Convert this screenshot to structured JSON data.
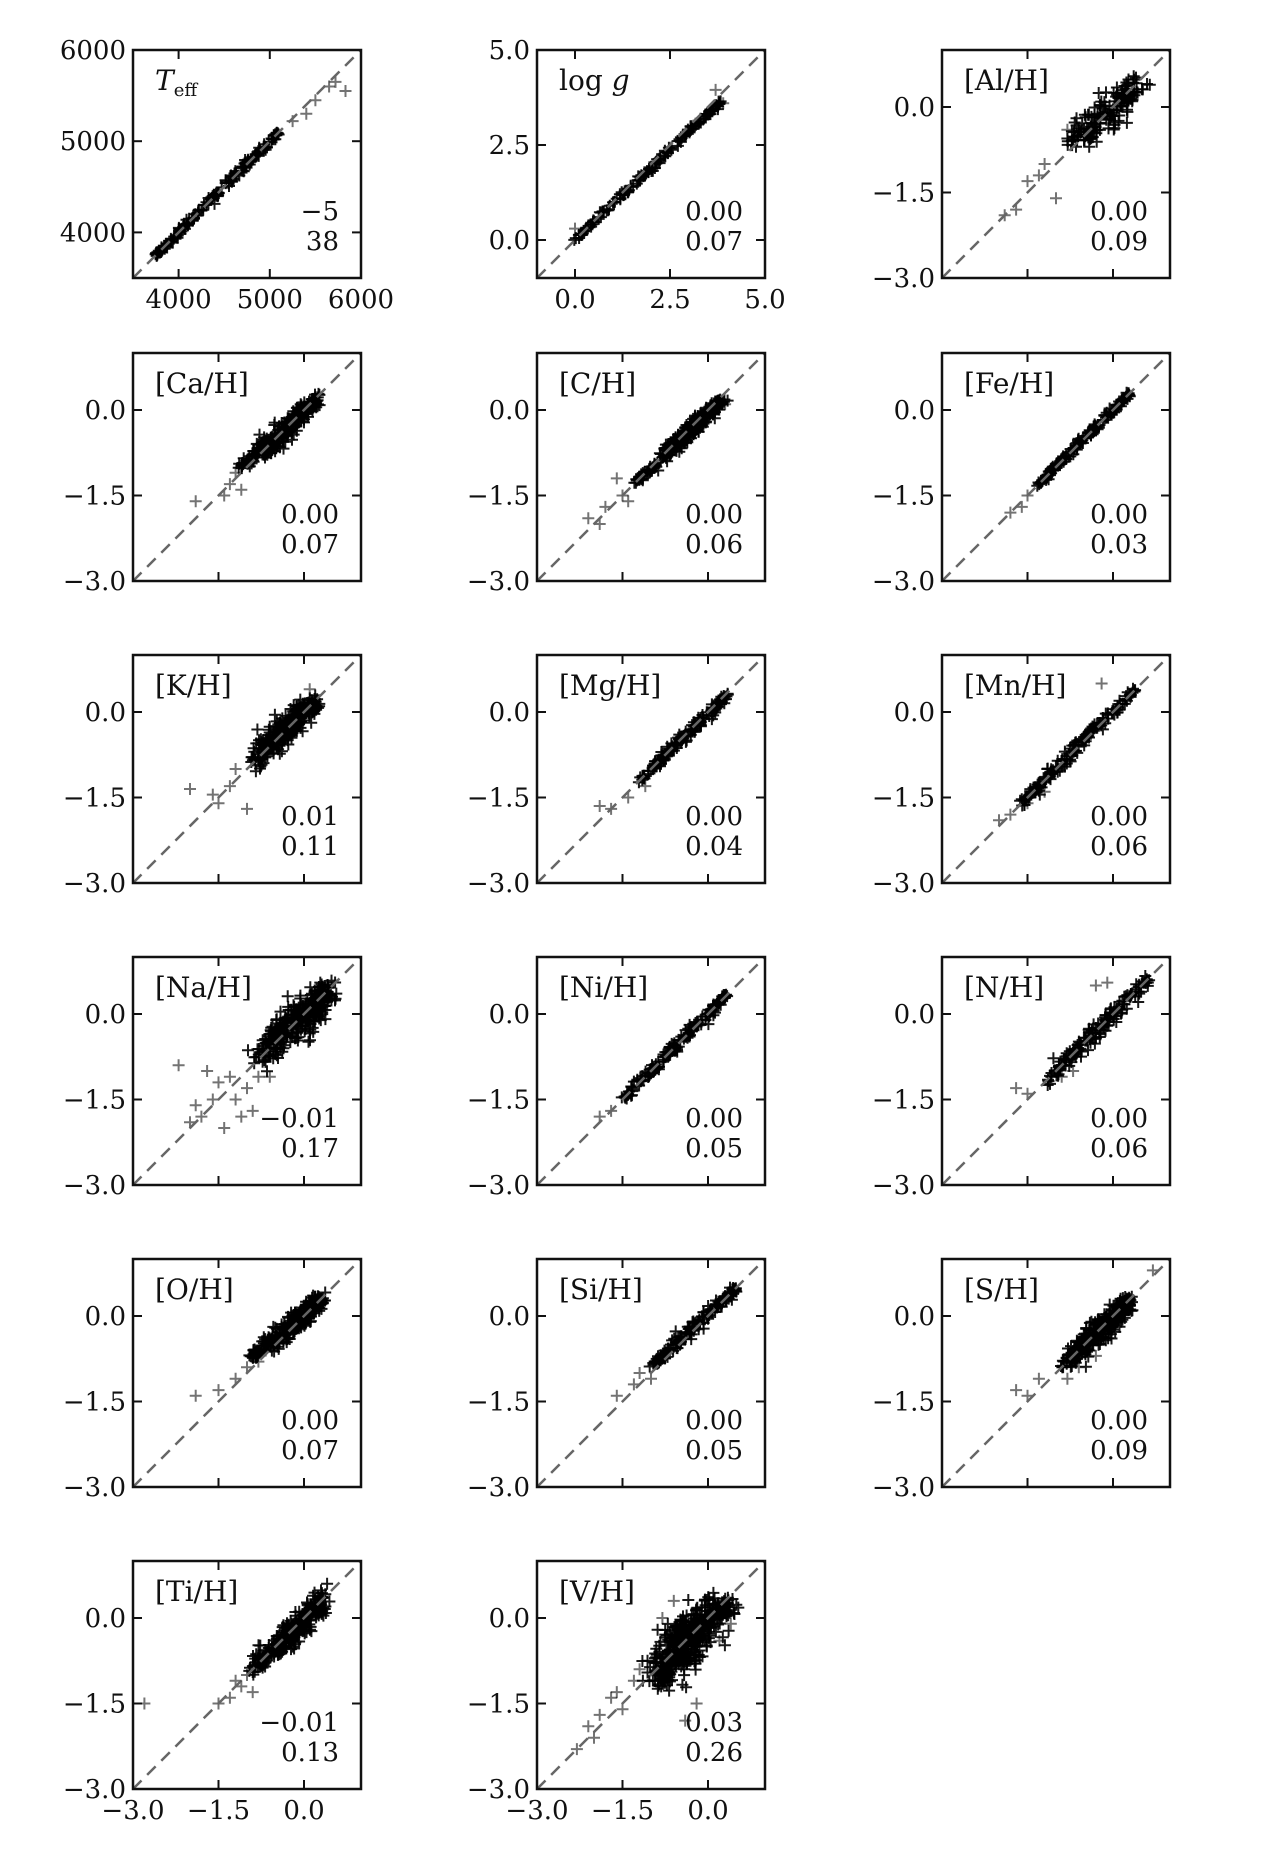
{
  "colors": {
    "points": "#000000",
    "diagonal": "#666666",
    "frame": "#111111"
  },
  "chart_data": [
    {
      "type": "scatter",
      "title": "T",
      "title_sub": "eff",
      "xlim": [
        3500,
        6000
      ],
      "ylim": [
        3500,
        6000
      ],
      "xticks": [
        "4000",
        "5000",
        "6000"
      ],
      "yticks": [
        "4000",
        "5000",
        "6000"
      ],
      "show_x_ticklabels": true,
      "stats": [
        "−5",
        "38"
      ],
      "points": {
        "segments": [
          [
            3750,
            3750,
            5100,
            5100
          ]
        ],
        "spread": 35,
        "sparse": [
          [
            5250,
            5220
          ],
          [
            5500,
            5450
          ],
          [
            5650,
            5600
          ],
          [
            5720,
            5650
          ],
          [
            5830,
            5550
          ],
          [
            5400,
            5300
          ]
        ]
      }
    },
    {
      "type": "scatter",
      "title": "log g",
      "xlim": [
        -1.0,
        5.0
      ],
      "ylim": [
        -1.0,
        5.0
      ],
      "xticks": [
        "0.0",
        "2.5",
        "5.0"
      ],
      "yticks": [
        "0.0",
        "2.5",
        "5.0"
      ],
      "show_x_ticklabels": true,
      "stats": [
        "0.00",
        "0.07"
      ],
      "points": {
        "segments": [
          [
            0.0,
            0.0,
            3.9,
            3.7
          ]
        ],
        "spread": 0.07,
        "sparse": [
          [
            0.0,
            0.3
          ],
          [
            3.7,
            3.95
          ],
          [
            3.9,
            3.6
          ]
        ]
      }
    },
    {
      "type": "scatter",
      "title": "[Al/H]",
      "xlim": [
        -3.0,
        1.0
      ],
      "ylim": [
        -3.0,
        1.0
      ],
      "xticks": [
        "−3.0",
        "−1.5",
        "0.0"
      ],
      "yticks": [
        "−3.0",
        "−1.5",
        "0.0"
      ],
      "show_x_ticklabels": false,
      "stats": [
        "0.00",
        "0.09"
      ],
      "points": {
        "segments": [
          [
            -0.7,
            -0.6,
            0.45,
            0.35
          ]
        ],
        "spread": 0.3,
        "sparse": [
          [
            -1.9,
            -1.9
          ],
          [
            -1.7,
            -1.8
          ],
          [
            -1.5,
            -1.3
          ],
          [
            -1.2,
            -1.0
          ],
          [
            -1.0,
            -1.6
          ],
          [
            -0.8,
            -0.4
          ],
          [
            -1.3,
            -1.2
          ]
        ]
      }
    },
    {
      "type": "scatter",
      "title": "[Ca/H]",
      "xlim": [
        -3.0,
        1.0
      ],
      "ylim": [
        -3.0,
        1.0
      ],
      "xticks": [
        "−3.0",
        "−1.5",
        "0.0"
      ],
      "yticks": [
        "−3.0",
        "−1.5",
        "0.0"
      ],
      "show_x_ticklabels": false,
      "stats": [
        "0.00",
        "0.07"
      ],
      "points": {
        "segments": [
          [
            -1.1,
            -1.0,
            0.25,
            0.25
          ],
          [
            -0.7,
            -0.8,
            0.2,
            0.15
          ]
        ],
        "spread": 0.13,
        "sparse": [
          [
            -1.9,
            -1.6
          ],
          [
            -1.4,
            -1.5
          ],
          [
            -1.3,
            -1.3
          ],
          [
            -1.1,
            -1.4
          ],
          [
            -1.2,
            -1.1
          ]
        ]
      }
    },
    {
      "type": "scatter",
      "title": "[C/H]",
      "xlim": [
        -3.0,
        1.0
      ],
      "ylim": [
        -3.0,
        1.0
      ],
      "xticks": [
        "−3.0",
        "−1.5",
        "0.0"
      ],
      "yticks": [
        "−3.0",
        "−1.5",
        "0.0"
      ],
      "show_x_ticklabels": false,
      "stats": [
        "0.00",
        "0.06"
      ],
      "points": {
        "segments": [
          [
            -1.3,
            -1.3,
            0.3,
            0.2
          ],
          [
            -0.8,
            -0.8,
            0.2,
            0.15
          ]
        ],
        "spread": 0.1,
        "sparse": [
          [
            -2.1,
            -1.9
          ],
          [
            -1.9,
            -2.0
          ],
          [
            -1.8,
            -1.7
          ],
          [
            -1.5,
            -1.5
          ],
          [
            -1.4,
            -1.6
          ],
          [
            -1.6,
            -1.2
          ],
          [
            0.3,
            0.1
          ]
        ]
      }
    },
    {
      "type": "scatter",
      "title": "[Fe/H]",
      "xlim": [
        -3.0,
        1.0
      ],
      "ylim": [
        -3.0,
        1.0
      ],
      "xticks": [
        "−3.0",
        "−1.5",
        "0.0"
      ],
      "yticks": [
        "−3.0",
        "−1.5",
        "0.0"
      ],
      "show_x_ticklabels": false,
      "stats": [
        "0.00",
        "0.03"
      ],
      "points": {
        "segments": [
          [
            -1.3,
            -1.3,
            0.3,
            0.3
          ]
        ],
        "spread": 0.06,
        "sparse": [
          [
            -1.8,
            -1.8
          ],
          [
            -1.6,
            -1.7
          ],
          [
            -1.5,
            -1.5
          ]
        ]
      }
    },
    {
      "type": "scatter",
      "title": "[K/H]",
      "xlim": [
        -3.0,
        1.0
      ],
      "ylim": [
        -3.0,
        1.0
      ],
      "xticks": [
        "−3.0",
        "−1.5",
        "0.0"
      ],
      "yticks": [
        "−3.0",
        "−1.5",
        "0.0"
      ],
      "show_x_ticklabels": false,
      "stats": [
        "0.01",
        "0.11"
      ],
      "points": {
        "segments": [
          [
            -0.9,
            -0.9,
            0.15,
            0.15
          ],
          [
            -0.6,
            -0.6,
            0.2,
            0.2
          ]
        ],
        "spread": 0.22,
        "sparse": [
          [
            -2.0,
            -1.35
          ],
          [
            -1.6,
            -1.45
          ],
          [
            -1.5,
            -1.6
          ],
          [
            -1.3,
            -1.3
          ],
          [
            -1.0,
            -1.7
          ],
          [
            -1.2,
            -1.0
          ],
          [
            0.1,
            0.4
          ]
        ]
      }
    },
    {
      "type": "scatter",
      "title": "[Mg/H]",
      "xlim": [
        -3.0,
        1.0
      ],
      "ylim": [
        -3.0,
        1.0
      ],
      "xticks": [
        "−3.0",
        "−1.5",
        "0.0"
      ],
      "yticks": [
        "−3.0",
        "−1.5",
        "0.0"
      ],
      "show_x_ticklabels": false,
      "stats": [
        "0.00",
        "0.04"
      ],
      "points": {
        "segments": [
          [
            -1.2,
            -1.2,
            0.35,
            0.3
          ]
        ],
        "spread": 0.08,
        "sparse": [
          [
            -1.9,
            -1.65
          ],
          [
            -1.7,
            -1.7
          ],
          [
            -1.4,
            -1.5
          ],
          [
            -1.1,
            -1.3
          ]
        ]
      }
    },
    {
      "type": "scatter",
      "title": "[Mn/H]",
      "xlim": [
        -3.0,
        1.0
      ],
      "ylim": [
        -3.0,
        1.0
      ],
      "xticks": [
        "−3.0",
        "−1.5",
        "0.0"
      ],
      "yticks": [
        "−3.0",
        "−1.5",
        "0.0"
      ],
      "show_x_ticklabels": false,
      "stats": [
        "0.00",
        "0.06"
      ],
      "points": {
        "segments": [
          [
            -1.6,
            -1.6,
            0.4,
            0.4
          ]
        ],
        "spread": 0.1,
        "sparse": [
          [
            -2.0,
            -1.9
          ],
          [
            -1.8,
            -1.8
          ],
          [
            -1.5,
            -1.6
          ],
          [
            -0.2,
            0.5
          ],
          [
            -1.2,
            -1.4
          ]
        ]
      }
    },
    {
      "type": "scatter",
      "title": "[Na/H]",
      "xlim": [
        -3.0,
        1.0
      ],
      "ylim": [
        -3.0,
        1.0
      ],
      "xticks": [
        "−3.0",
        "−1.5",
        "0.0"
      ],
      "yticks": [
        "−3.0",
        "−1.5",
        "0.0"
      ],
      "show_x_ticklabels": false,
      "stats": [
        "−0.01",
        "0.17"
      ],
      "points": {
        "segments": [
          [
            -0.8,
            -0.8,
            0.45,
            0.45
          ],
          [
            -0.5,
            -0.4,
            0.4,
            0.3
          ]
        ],
        "spread": 0.3,
        "sparse": [
          [
            -2.0,
            -1.9
          ],
          [
            -1.8,
            -1.8
          ],
          [
            -1.9,
            -1.6
          ],
          [
            -1.6,
            -1.5
          ],
          [
            -1.4,
            -2.0
          ],
          [
            -1.2,
            -1.5
          ],
          [
            -1.1,
            -1.8
          ],
          [
            -1.0,
            -1.3
          ],
          [
            -0.9,
            -1.7
          ],
          [
            -1.5,
            -1.2
          ],
          [
            -1.7,
            -1.0
          ],
          [
            -0.8,
            -1.1
          ],
          [
            -0.6,
            -1.1
          ],
          [
            -2.2,
            -0.9
          ],
          [
            -1.3,
            -1.1
          ]
        ]
      }
    },
    {
      "type": "scatter",
      "title": "[Ni/H]",
      "xlim": [
        -3.0,
        1.0
      ],
      "ylim": [
        -3.0,
        1.0
      ],
      "xticks": [
        "−3.0",
        "−1.5",
        "0.0"
      ],
      "yticks": [
        "−3.0",
        "−1.5",
        "0.0"
      ],
      "show_x_ticklabels": false,
      "stats": [
        "0.00",
        "0.05"
      ],
      "points": {
        "segments": [
          [
            -1.5,
            -1.5,
            0.35,
            0.35
          ]
        ],
        "spread": 0.08,
        "sparse": [
          [
            -1.9,
            -1.8
          ],
          [
            -1.7,
            -1.7
          ],
          [
            -1.4,
            -1.4
          ]
        ]
      }
    },
    {
      "type": "scatter",
      "title": "[N/H]",
      "xlim": [
        -3.0,
        1.0
      ],
      "ylim": [
        -3.0,
        1.0
      ],
      "xticks": [
        "−3.0",
        "−1.5",
        "0.0"
      ],
      "yticks": [
        "−3.0",
        "−1.5",
        "0.0"
      ],
      "show_x_ticklabels": false,
      "stats": [
        "0.00",
        "0.06"
      ],
      "points": {
        "segments": [
          [
            -1.2,
            -1.2,
            0.6,
            0.6
          ]
        ],
        "spread": 0.12,
        "sparse": [
          [
            -1.7,
            -1.3
          ],
          [
            -1.5,
            -1.4
          ],
          [
            -0.3,
            0.5
          ],
          [
            -0.1,
            0.55
          ],
          [
            -0.9,
            -1.1
          ],
          [
            -0.7,
            -1.0
          ]
        ]
      }
    },
    {
      "type": "scatter",
      "title": "[O/H]",
      "xlim": [
        -3.0,
        1.0
      ],
      "ylim": [
        -3.0,
        1.0
      ],
      "xticks": [
        "−3.0",
        "−1.5",
        "0.0"
      ],
      "yticks": [
        "−3.0",
        "−1.5",
        "0.0"
      ],
      "show_x_ticklabels": false,
      "stats": [
        "0.00",
        "0.07"
      ],
      "points": {
        "segments": [
          [
            -0.9,
            -0.7,
            0.35,
            0.35
          ],
          [
            -0.5,
            -0.5,
            0.3,
            0.3
          ]
        ],
        "spread": 0.14,
        "sparse": [
          [
            -1.9,
            -1.4
          ],
          [
            -1.5,
            -1.3
          ],
          [
            -1.2,
            -1.1
          ],
          [
            -1.0,
            -0.9
          ],
          [
            -0.8,
            -0.8
          ]
        ]
      }
    },
    {
      "type": "scatter",
      "title": "[Si/H]",
      "xlim": [
        -3.0,
        1.0
      ],
      "ylim": [
        -3.0,
        1.0
      ],
      "xticks": [
        "−3.0",
        "−1.5",
        "0.0"
      ],
      "yticks": [
        "−3.0",
        "−1.5",
        "0.0"
      ],
      "show_x_ticklabels": false,
      "stats": [
        "0.00",
        "0.05"
      ],
      "points": {
        "segments": [
          [
            -1.0,
            -0.9,
            0.5,
            0.5
          ]
        ],
        "spread": 0.09,
        "sparse": [
          [
            -1.6,
            -1.4
          ],
          [
            -1.3,
            -1.2
          ],
          [
            -1.2,
            -1.0
          ],
          [
            -1.0,
            -1.1
          ]
        ]
      }
    },
    {
      "type": "scatter",
      "title": "[S/H]",
      "xlim": [
        -3.0,
        1.0
      ],
      "ylim": [
        -3.0,
        1.0
      ],
      "xticks": [
        "−3.0",
        "−1.5",
        "0.0"
      ],
      "yticks": [
        "−3.0",
        "−1.5",
        "0.0"
      ],
      "show_x_ticklabels": false,
      "stats": [
        "0.00",
        "0.09"
      ],
      "points": {
        "segments": [
          [
            -0.9,
            -0.9,
            0.35,
            0.35
          ],
          [
            -0.6,
            -0.6,
            0.3,
            0.2
          ]
        ],
        "spread": 0.18,
        "sparse": [
          [
            -1.7,
            -1.3
          ],
          [
            -1.5,
            -1.4
          ],
          [
            -1.3,
            -1.1
          ],
          [
            -0.8,
            -1.1
          ],
          [
            -0.6,
            -0.9
          ],
          [
            0.7,
            0.8
          ],
          [
            -0.3,
            -0.7
          ]
        ]
      }
    },
    {
      "type": "scatter",
      "title": "[Ti/H]",
      "xlim": [
        -3.0,
        1.0
      ],
      "ylim": [
        -3.0,
        1.0
      ],
      "xticks": [
        "−3.0",
        "−1.5",
        "0.0"
      ],
      "yticks": [
        "−3.0",
        "−1.5",
        "0.0"
      ],
      "show_x_ticklabels": true,
      "stats": [
        "−0.01",
        "0.13"
      ],
      "points": {
        "segments": [
          [
            -0.9,
            -0.9,
            0.35,
            0.4
          ],
          [
            -0.5,
            -0.6,
            0.3,
            0.2
          ]
        ],
        "spread": 0.18,
        "sparse": [
          [
            -2.8,
            -1.5
          ],
          [
            -1.5,
            -1.5
          ],
          [
            -1.3,
            -1.4
          ],
          [
            -1.1,
            -1.2
          ],
          [
            -1.0,
            -1.0
          ],
          [
            -0.9,
            -1.3
          ],
          [
            -1.2,
            -1.1
          ]
        ]
      }
    },
    {
      "type": "scatter",
      "title": "[V/H]",
      "xlim": [
        -3.0,
        1.0
      ],
      "ylim": [
        -3.0,
        1.0
      ],
      "xticks": [
        "−3.0",
        "−1.5",
        "0.0"
      ],
      "yticks": [
        "−3.0",
        "−1.5",
        "0.0"
      ],
      "show_x_ticklabels": true,
      "stats": [
        "0.03",
        "0.26"
      ],
      "points": {
        "segments": [
          [
            -1.0,
            -1.0,
            0.3,
            0.3
          ],
          [
            -0.6,
            -0.4,
            0.3,
            0.2
          ],
          [
            -0.8,
            -1.1,
            -0.2,
            -0.3
          ]
        ],
        "spread": 0.35,
        "sparse": [
          [
            -2.3,
            -2.3
          ],
          [
            -2.1,
            -1.9
          ],
          [
            -2.0,
            -2.1
          ],
          [
            -1.9,
            -1.7
          ],
          [
            -1.7,
            -1.4
          ],
          [
            -1.6,
            -1.3
          ],
          [
            -1.5,
            -1.6
          ],
          [
            -1.3,
            -1.1
          ],
          [
            -1.2,
            -0.9
          ],
          [
            -0.8,
            0.0
          ],
          [
            -0.6,
            0.3
          ],
          [
            0.2,
            -0.4
          ],
          [
            0.4,
            -0.1
          ],
          [
            -0.4,
            -1.8
          ],
          [
            -0.2,
            -1.5
          ]
        ]
      }
    }
  ]
}
